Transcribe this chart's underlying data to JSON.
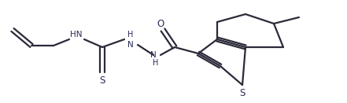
{
  "bg_color": "#ffffff",
  "line_color": "#2a2a3a",
  "line_width": 1.6,
  "figsize": [
    4.41,
    1.31
  ],
  "dpi": 100,
  "font_color": "#2a2a5a",
  "atoms": {
    "S_label": "S",
    "O_label": "O",
    "NH1_label": "HN",
    "NH2_label": "H",
    "NH3_label": "H",
    "N_label": "N",
    "S2_label": "S"
  }
}
